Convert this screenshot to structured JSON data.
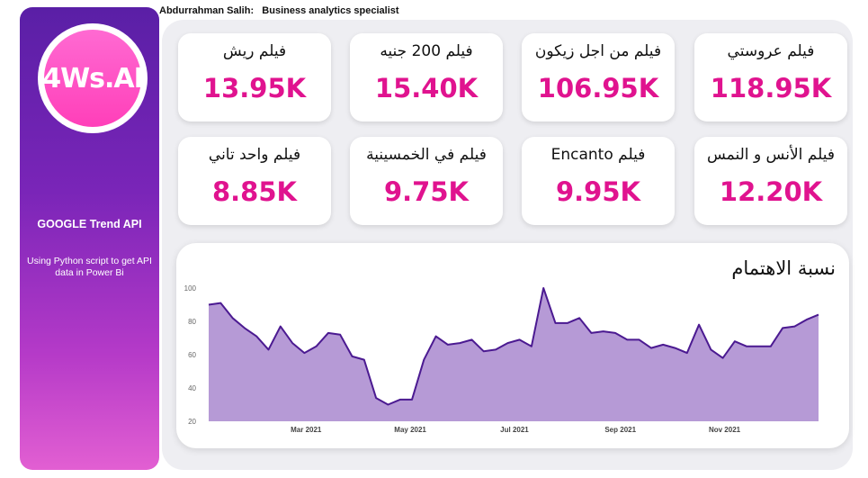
{
  "header": {
    "author": "Abdurrahman Salih:   Business analytics specialist"
  },
  "sidebar": {
    "logo_text": "4Ws.AI",
    "title": "GOOGLE Trend API",
    "subtitle": "Using Python script to get API data in Power Bi"
  },
  "kpis": [
    {
      "title": "فيلم عروستي",
      "value": "118.95K"
    },
    {
      "title": "فيلم من اجل زيكون",
      "value": "106.95K"
    },
    {
      "title": "فيلم 200 جنيه",
      "value": "15.40K"
    },
    {
      "title": "فيلم ريش",
      "value": "13.95K"
    },
    {
      "title": "فيلم الأنس و النمس",
      "value": "12.20K"
    },
    {
      "title": "فيلم  Encanto",
      "value": "9.95K"
    },
    {
      "title": "فيلم في الخمسينية",
      "value": "9.75K"
    },
    {
      "title": "فيلم واحد تاني",
      "value": "8.85K"
    }
  ],
  "colors": {
    "accent": "#e0138f",
    "area_fill": "#b69ad6",
    "line": "#4b1a91"
  },
  "chart_data": {
    "type": "area",
    "title": "نسبة الاهتمام",
    "xlabel": "",
    "ylabel": "",
    "ylim": [
      20,
      100
    ],
    "yticks": [
      20,
      40,
      60,
      80,
      100
    ],
    "x_range": [
      "2021-01-03",
      "2021-12-26"
    ],
    "xticks": [
      {
        "date": "2021-03-01",
        "label": "Mar 2021"
      },
      {
        "date": "2021-05-01",
        "label": "May 2021"
      },
      {
        "date": "2021-07-01",
        "label": "Jul 2021"
      },
      {
        "date": "2021-09-01",
        "label": "Sep 2021"
      },
      {
        "date": "2021-11-01",
        "label": "Nov 2021"
      }
    ],
    "grid": false,
    "x": [
      "2021-01-03",
      "2021-01-10",
      "2021-01-17",
      "2021-01-24",
      "2021-01-31",
      "2021-02-07",
      "2021-02-14",
      "2021-02-21",
      "2021-02-28",
      "2021-03-07",
      "2021-03-14",
      "2021-03-21",
      "2021-03-28",
      "2021-04-04",
      "2021-04-11",
      "2021-04-18",
      "2021-04-25",
      "2021-05-02",
      "2021-05-09",
      "2021-05-16",
      "2021-05-23",
      "2021-05-30",
      "2021-06-06",
      "2021-06-13",
      "2021-06-20",
      "2021-06-27",
      "2021-07-04",
      "2021-07-11",
      "2021-07-18",
      "2021-07-25",
      "2021-08-01",
      "2021-08-08",
      "2021-08-15",
      "2021-08-22",
      "2021-08-29",
      "2021-09-05",
      "2021-09-12",
      "2021-09-19",
      "2021-09-26",
      "2021-10-03",
      "2021-10-10",
      "2021-10-17",
      "2021-10-24",
      "2021-10-31",
      "2021-11-07",
      "2021-11-14",
      "2021-11-21",
      "2021-11-28",
      "2021-12-05",
      "2021-12-12",
      "2021-12-19",
      "2021-12-26"
    ],
    "values": [
      90,
      91,
      82,
      76,
      71,
      63,
      77,
      67,
      61,
      65,
      73,
      72,
      59,
      57,
      34,
      30,
      33,
      33,
      57,
      71,
      66,
      67,
      69,
      62,
      63,
      67,
      69,
      65,
      100,
      79,
      79,
      82,
      73,
      74,
      73,
      69,
      69,
      64,
      66,
      64,
      61,
      78,
      63,
      58,
      68,
      65,
      65,
      65,
      76,
      77,
      81,
      84
    ]
  }
}
